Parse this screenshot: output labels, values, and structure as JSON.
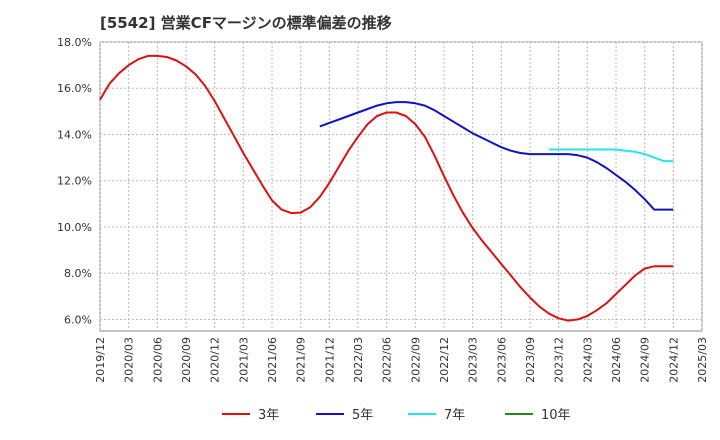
{
  "chart_data": {
    "type": "line",
    "title": "[5542]  営業CFマージンの標準偏差の推移",
    "x_ticks": [
      "2019/12",
      "2020/03",
      "2020/06",
      "2020/09",
      "2020/12",
      "2021/03",
      "2021/06",
      "2021/09",
      "2021/12",
      "2022/03",
      "2022/06",
      "2022/09",
      "2022/12",
      "2023/03",
      "2023/06",
      "2023/09",
      "2023/12",
      "2024/03",
      "2024/06",
      "2024/09",
      "2024/12",
      "2025/03"
    ],
    "y_ticks": [
      "6.0%",
      "8.0%",
      "10.0%",
      "12.0%",
      "14.0%",
      "16.0%",
      "18.0%"
    ],
    "ylim": [
      5.5,
      18.0
    ],
    "grid": true,
    "legend_position": "bottom",
    "series": [
      {
        "name": "3年",
        "color": "#dd1111",
        "x": [
          "2019/12",
          "2020/01",
          "2020/02",
          "2020/03",
          "2020/04",
          "2020/05",
          "2020/06",
          "2020/07",
          "2020/08",
          "2020/09",
          "2020/10",
          "2020/11",
          "2020/12",
          "2021/01",
          "2021/02",
          "2021/03",
          "2021/04",
          "2021/05",
          "2021/06",
          "2021/07",
          "2021/08",
          "2021/09",
          "2021/10",
          "2021/11",
          "2021/12",
          "2022/01",
          "2022/02",
          "2022/03",
          "2022/04",
          "2022/05",
          "2022/06",
          "2022/07",
          "2022/08",
          "2022/09",
          "2022/10",
          "2022/11",
          "2022/12",
          "2023/01",
          "2023/02",
          "2023/03",
          "2023/04",
          "2023/05",
          "2023/06",
          "2023/07",
          "2023/08",
          "2023/09",
          "2023/10",
          "2023/11",
          "2023/12",
          "2024/01",
          "2024/02",
          "2024/03",
          "2024/04",
          "2024/05",
          "2024/06",
          "2024/07",
          "2024/08",
          "2024/09",
          "2024/10",
          "2024/11",
          "2024/12"
        ],
        "values": [
          15.5,
          16.2,
          16.65,
          17.0,
          17.25,
          17.4,
          17.4,
          17.35,
          17.2,
          16.95,
          16.6,
          16.1,
          15.45,
          14.7,
          13.95,
          13.2,
          12.5,
          11.8,
          11.15,
          10.75,
          10.6,
          10.62,
          10.85,
          11.3,
          11.9,
          12.6,
          13.3,
          13.9,
          14.45,
          14.8,
          14.95,
          14.95,
          14.8,
          14.45,
          13.9,
          13.1,
          12.2,
          11.35,
          10.6,
          9.95,
          9.4,
          8.9,
          8.4,
          7.9,
          7.4,
          6.95,
          6.55,
          6.25,
          6.05,
          5.95,
          6.0,
          6.15,
          6.4,
          6.7,
          7.1,
          7.5,
          7.9,
          8.2,
          8.3,
          8.3,
          8.3
        ]
      },
      {
        "name": "5年",
        "color": "#1111cc",
        "x": [
          "2021/11",
          "2021/12",
          "2022/01",
          "2022/02",
          "2022/03",
          "2022/04",
          "2022/05",
          "2022/06",
          "2022/07",
          "2022/08",
          "2022/09",
          "2022/10",
          "2022/11",
          "2022/12",
          "2023/01",
          "2023/02",
          "2023/03",
          "2023/04",
          "2023/05",
          "2023/06",
          "2023/07",
          "2023/08",
          "2023/09",
          "2023/10",
          "2023/11",
          "2023/12",
          "2024/01",
          "2024/02",
          "2024/03",
          "2024/04",
          "2024/05",
          "2024/06",
          "2024/07",
          "2024/08",
          "2024/09",
          "2024/10",
          "2024/11",
          "2024/12"
        ],
        "values": [
          14.35,
          14.5,
          14.65,
          14.8,
          14.95,
          15.1,
          15.25,
          15.35,
          15.4,
          15.4,
          15.35,
          15.25,
          15.05,
          14.8,
          14.55,
          14.3,
          14.05,
          13.85,
          13.65,
          13.45,
          13.3,
          13.2,
          13.15,
          13.15,
          13.15,
          13.15,
          13.15,
          13.1,
          13.0,
          12.8,
          12.55,
          12.25,
          11.95,
          11.6,
          11.2,
          10.75,
          10.75,
          10.75
        ]
      },
      {
        "name": "7年",
        "color": "#22e5ee",
        "x": [
          "2023/11",
          "2023/12",
          "2024/01",
          "2024/02",
          "2024/03",
          "2024/04",
          "2024/05",
          "2024/06",
          "2024/07",
          "2024/08",
          "2024/09",
          "2024/10",
          "2024/11",
          "2024/12"
        ],
        "values": [
          13.35,
          13.35,
          13.35,
          13.35,
          13.35,
          13.35,
          13.35,
          13.35,
          13.3,
          13.25,
          13.15,
          13.0,
          12.85,
          12.85
        ]
      },
      {
        "name": "10年",
        "color": "#228822",
        "x": [],
        "values": []
      }
    ]
  }
}
